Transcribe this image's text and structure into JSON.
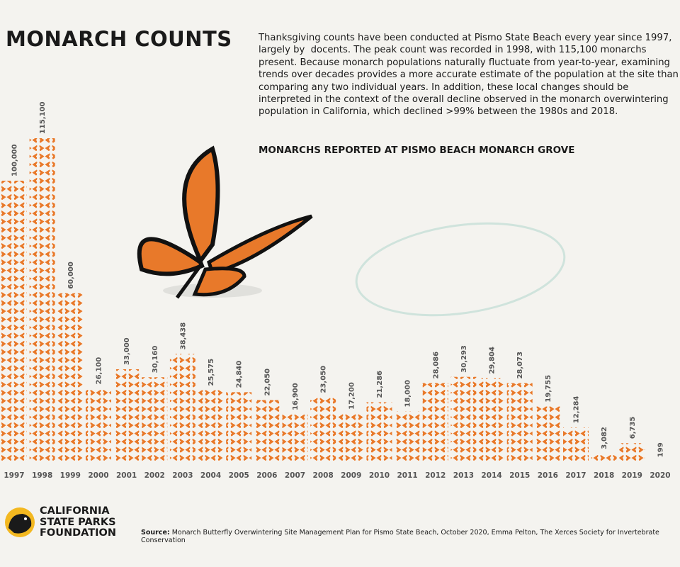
{
  "chart_data": {
    "type": "pictograph",
    "title": "MONARCH COUNTS",
    "description": "Thanksgiving counts have been conducted at Pismo State Beach every year since 1997, largely by  docents. The peak count was recorded in 1998, with 115,100 monarchs present. Because monarch populations naturally fluctuate from year-to-year, examining trends over decades provides a more accurate estimate of the population at the site than comparing any two individual years. In addition, these local changes should be interpreted in the context of the overall decline observed in the monarch overwintering population in California, which declined >99% between the 1980s and 2018.",
    "subtitle": "MONARCHS REPORTED AT PISMO BEACH MONARCH GROVE",
    "categories": [
      "1997",
      "1998",
      "1999",
      "2000",
      "2001",
      "2002",
      "2003",
      "2004",
      "2005",
      "2006",
      "2007",
      "2008",
      "2009",
      "2010",
      "2011",
      "2012",
      "2013",
      "2014",
      "2015",
      "2016",
      "2017",
      "2018",
      "2019",
      "2020"
    ],
    "values": [
      100000,
      115100,
      60000,
      26100,
      33000,
      30160,
      38438,
      25575,
      24840,
      22050,
      16900,
      23050,
      17200,
      21286,
      18000,
      28086,
      30293,
      29804,
      28073,
      19755,
      12284,
      3082,
      6735,
      199
    ],
    "value_labels": [
      "100,000",
      "115,100",
      "60,000",
      "26,100",
      "33,000",
      "30,160",
      "38,438",
      "25,575",
      "24,840",
      "22,050",
      "16,900",
      "23,050",
      "17,200",
      "21,286",
      "18,000",
      "28,086",
      "30,293",
      "29,804",
      "28,073",
      "19,755",
      "12,284",
      "3,082",
      "6,735",
      "199"
    ],
    "color": "#e8792a"
  },
  "logo": {
    "lines": [
      "CALIFORNIA",
      "STATE PARKS",
      "FOUNDATION"
    ]
  },
  "source": {
    "label": "Source:",
    "text": "Monarch Butterfly Overwintering Site Management Plan for Pismo State Beach, October 2020, Emma Pelton, The Xerces Society for Invertebrate Conservation"
  }
}
